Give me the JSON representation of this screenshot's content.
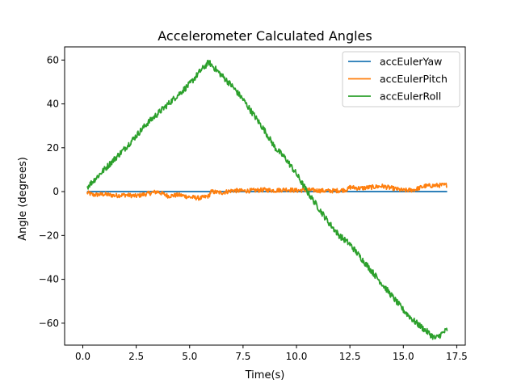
{
  "chart_data": {
    "type": "line",
    "title": "Accelerometer Calculated Angles",
    "xlabel": "Time(s)",
    "ylabel": "Angle (degrees)",
    "xlim": [
      -0.85,
      17.9
    ],
    "ylim": [
      -70,
      66
    ],
    "xticks": [
      0.0,
      2.5,
      5.0,
      7.5,
      10.0,
      12.5,
      15.0,
      17.5
    ],
    "xtick_labels": [
      "0.0",
      "2.5",
      "5.0",
      "7.5",
      "10.0",
      "12.5",
      "15.0",
      "17.5"
    ],
    "yticks": [
      -60,
      -40,
      -20,
      0,
      20,
      40,
      60
    ],
    "ytick_labels": [
      "−60",
      "−40",
      "−20",
      "0",
      "20",
      "40",
      "60"
    ],
    "grid": false,
    "legend_position": "top-right",
    "series": [
      {
        "name": "accEulerYaw",
        "color": "#1f77b4",
        "x": [
          0.2,
          17.05
        ],
        "y": [
          0,
          0
        ]
      },
      {
        "name": "accEulerPitch",
        "color": "#ff7f0e",
        "x": [
          0.2,
          0.5,
          1.0,
          1.5,
          2.0,
          2.5,
          3.0,
          3.5,
          4.0,
          4.5,
          5.0,
          5.5,
          5.9,
          6.0,
          6.5,
          7.0,
          7.5,
          8.0,
          8.5,
          9.0,
          9.5,
          10.0,
          10.5,
          11.0,
          11.5,
          12.0,
          12.4,
          12.5,
          13.0,
          13.5,
          14.0,
          14.5,
          15.0,
          15.5,
          16.0,
          16.5,
          17.05
        ],
        "y": [
          -0.5,
          -1.5,
          -1.2,
          -1.8,
          -1.5,
          -2.0,
          -1.0,
          0.0,
          -2.0,
          -1.5,
          -2.5,
          -3.0,
          -2.0,
          0.0,
          -0.5,
          0.5,
          0.3,
          0.5,
          0.8,
          0.5,
          1.0,
          0.5,
          0.8,
          0.5,
          0.3,
          0.5,
          1.0,
          2.0,
          1.5,
          2.0,
          2.5,
          1.5,
          0.5,
          0.8,
          2.5,
          2.8,
          3.0
        ]
      },
      {
        "name": "accEulerRoll",
        "color": "#2ca02c",
        "x": [
          0.2,
          1.0,
          2.0,
          3.0,
          4.0,
          5.0,
          5.5,
          5.9,
          6.5,
          7.0,
          7.5,
          8.0,
          8.5,
          9.0,
          9.5,
          10.0,
          10.5,
          11.0,
          11.5,
          12.0,
          12.5,
          13.0,
          13.5,
          14.0,
          14.5,
          15.0,
          15.5,
          16.0,
          16.5,
          17.05
        ],
        "y": [
          2,
          10,
          20,
          31,
          40,
          49,
          55,
          59,
          53,
          48,
          42,
          35,
          28,
          20,
          15,
          8,
          0,
          -7,
          -14,
          -20,
          -24,
          -30,
          -36,
          -42,
          -48,
          -54,
          -59,
          -63,
          -67,
          -63
        ]
      }
    ]
  }
}
